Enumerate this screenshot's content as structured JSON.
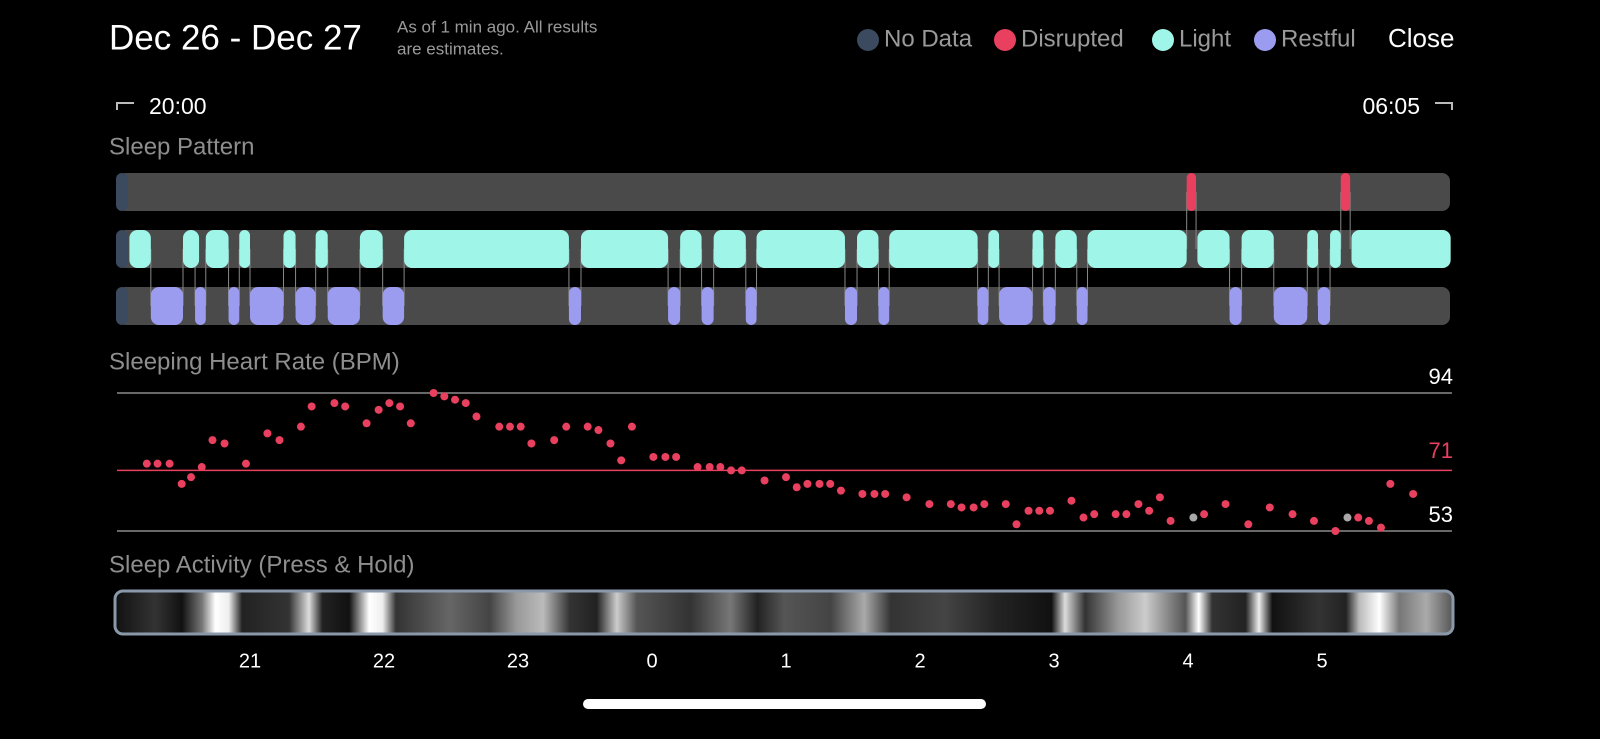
{
  "header": {
    "title": "Dec 26 - Dec 27",
    "note_line1": "As of 1 min ago. All results",
    "note_line2": "are estimates.",
    "close": "Close"
  },
  "range_labels": {
    "start": "20:00",
    "end": "06:05"
  },
  "chart_data": [
    {
      "type": "timeline",
      "title": "Sleep Pattern",
      "xlim": [
        20,
        29.97
      ],
      "series": [
        {
          "name": "No Data",
          "color": "#3b4a5e",
          "segments": [
            [
              20,
              20.09
            ]
          ]
        },
        {
          "name": "Disrupted",
          "color": "#e8405e",
          "segments": [
            [
              27.99,
              28.06
            ],
            [
              29.14,
              29.21
            ]
          ]
        },
        {
          "name": "Light",
          "color": "#9ef5e8",
          "segments": [
            [
              20.1,
              20.26
            ],
            [
              20.5,
              20.62
            ],
            [
              20.67,
              20.84
            ],
            [
              20.92,
              21.0
            ],
            [
              21.25,
              21.34
            ],
            [
              21.49,
              21.58
            ],
            [
              21.82,
              21.99
            ],
            [
              22.15,
              23.38
            ],
            [
              23.47,
              24.12
            ],
            [
              24.21,
              24.37
            ],
            [
              24.46,
              24.7
            ],
            [
              24.78,
              25.44
            ],
            [
              25.53,
              25.69
            ],
            [
              25.77,
              26.43
            ],
            [
              26.51,
              26.59
            ],
            [
              26.84,
              26.92
            ],
            [
              27.01,
              27.17
            ],
            [
              27.25,
              27.99
            ],
            [
              28.07,
              28.31
            ],
            [
              28.4,
              28.64
            ],
            [
              28.89,
              28.97
            ],
            [
              29.06,
              29.14
            ],
            [
              29.22,
              29.96
            ]
          ]
        },
        {
          "name": "Restful",
          "color": "#9b9cf0",
          "segments": [
            [
              20.26,
              20.5
            ],
            [
              20.59,
              20.67
            ],
            [
              20.84,
              20.92
            ],
            [
              21.0,
              21.25
            ],
            [
              21.34,
              21.49
            ],
            [
              21.58,
              21.82
            ],
            [
              21.99,
              22.15
            ],
            [
              23.38,
              23.47
            ],
            [
              24.12,
              24.21
            ],
            [
              24.37,
              24.46
            ],
            [
              24.7,
              24.78
            ],
            [
              25.44,
              25.53
            ],
            [
              25.69,
              25.77
            ],
            [
              26.43,
              26.51
            ],
            [
              26.59,
              26.84
            ],
            [
              26.92,
              27.01
            ],
            [
              27.17,
              27.25
            ],
            [
              28.31,
              28.4
            ],
            [
              28.64,
              28.89
            ],
            [
              28.97,
              29.06
            ]
          ]
        }
      ]
    },
    {
      "type": "scatter",
      "title": "Sleeping Heart Rate (BPM)",
      "xlim": [
        20,
        29.97
      ],
      "ylim": [
        53,
        94
      ],
      "yticks": [
        53,
        94
      ],
      "reference": 71,
      "reference_color": "#e8405e",
      "series": [
        {
          "color": "#e8405e",
          "x": [
            20.23,
            20.31,
            20.4,
            20.49,
            20.56,
            20.64,
            20.72,
            20.81,
            20.97,
            21.13,
            21.22,
            21.38,
            21.46,
            21.63,
            21.71,
            21.87,
            21.96,
            22.04,
            22.12,
            22.2,
            22.37,
            22.45,
            22.53,
            22.61,
            22.69,
            22.86,
            22.94,
            23.02,
            23.1,
            23.27,
            23.36,
            23.52,
            23.6,
            23.69,
            23.77,
            23.85,
            24.01,
            24.1,
            24.18,
            24.34,
            24.43,
            24.51,
            24.59,
            24.67,
            24.84,
            25.0,
            25.08,
            25.16,
            25.25,
            25.33,
            25.41,
            25.57,
            25.66,
            25.74,
            25.9,
            26.07,
            26.23,
            26.31,
            26.4,
            26.48,
            26.64,
            26.72,
            26.81,
            26.89,
            26.97,
            27.13,
            27.22,
            27.3,
            27.46,
            27.54,
            27.63,
            27.71,
            27.79,
            27.87,
            28.12,
            28.28,
            28.45,
            28.61,
            28.78,
            28.94,
            29.1,
            29.27,
            29.35,
            29.44,
            29.51,
            29.68
          ],
          "values": [
            73,
            73,
            73,
            67,
            69,
            72,
            80,
            79,
            73,
            82,
            80,
            84,
            90,
            91,
            90,
            85,
            89,
            91,
            90,
            85,
            94,
            93,
            92,
            91,
            87,
            84,
            84,
            84,
            79,
            80,
            84,
            84,
            83,
            79,
            74,
            84,
            75,
            75,
            75,
            72,
            72,
            72,
            71,
            71,
            68,
            69,
            66,
            67,
            67,
            67,
            65,
            64,
            64,
            64,
            63,
            61,
            61,
            60,
            60,
            61,
            61,
            55,
            59,
            59,
            59,
            62,
            57,
            58,
            58,
            58,
            61,
            59,
            63,
            56,
            58,
            61,
            55,
            60,
            58,
            56,
            53,
            57,
            56,
            54,
            67,
            64
          ]
        },
        {
          "color": "#a8a8a8",
          "x": [
            28.04,
            29.19
          ],
          "values": [
            57,
            57
          ]
        }
      ]
    },
    {
      "type": "heatstrip",
      "title": "Sleep Activity (Press & Hold)",
      "xlim": [
        20,
        29.97
      ],
      "xticks": [
        21,
        22,
        23,
        {
          "value": 24,
          "label": "0"
        },
        {
          "value": 25,
          "label": "1"
        },
        {
          "value": 26,
          "label": "2"
        },
        {
          "value": 27,
          "label": "3"
        },
        {
          "value": 28,
          "label": "4"
        },
        {
          "value": 29,
          "label": "5"
        }
      ]
    }
  ]
}
